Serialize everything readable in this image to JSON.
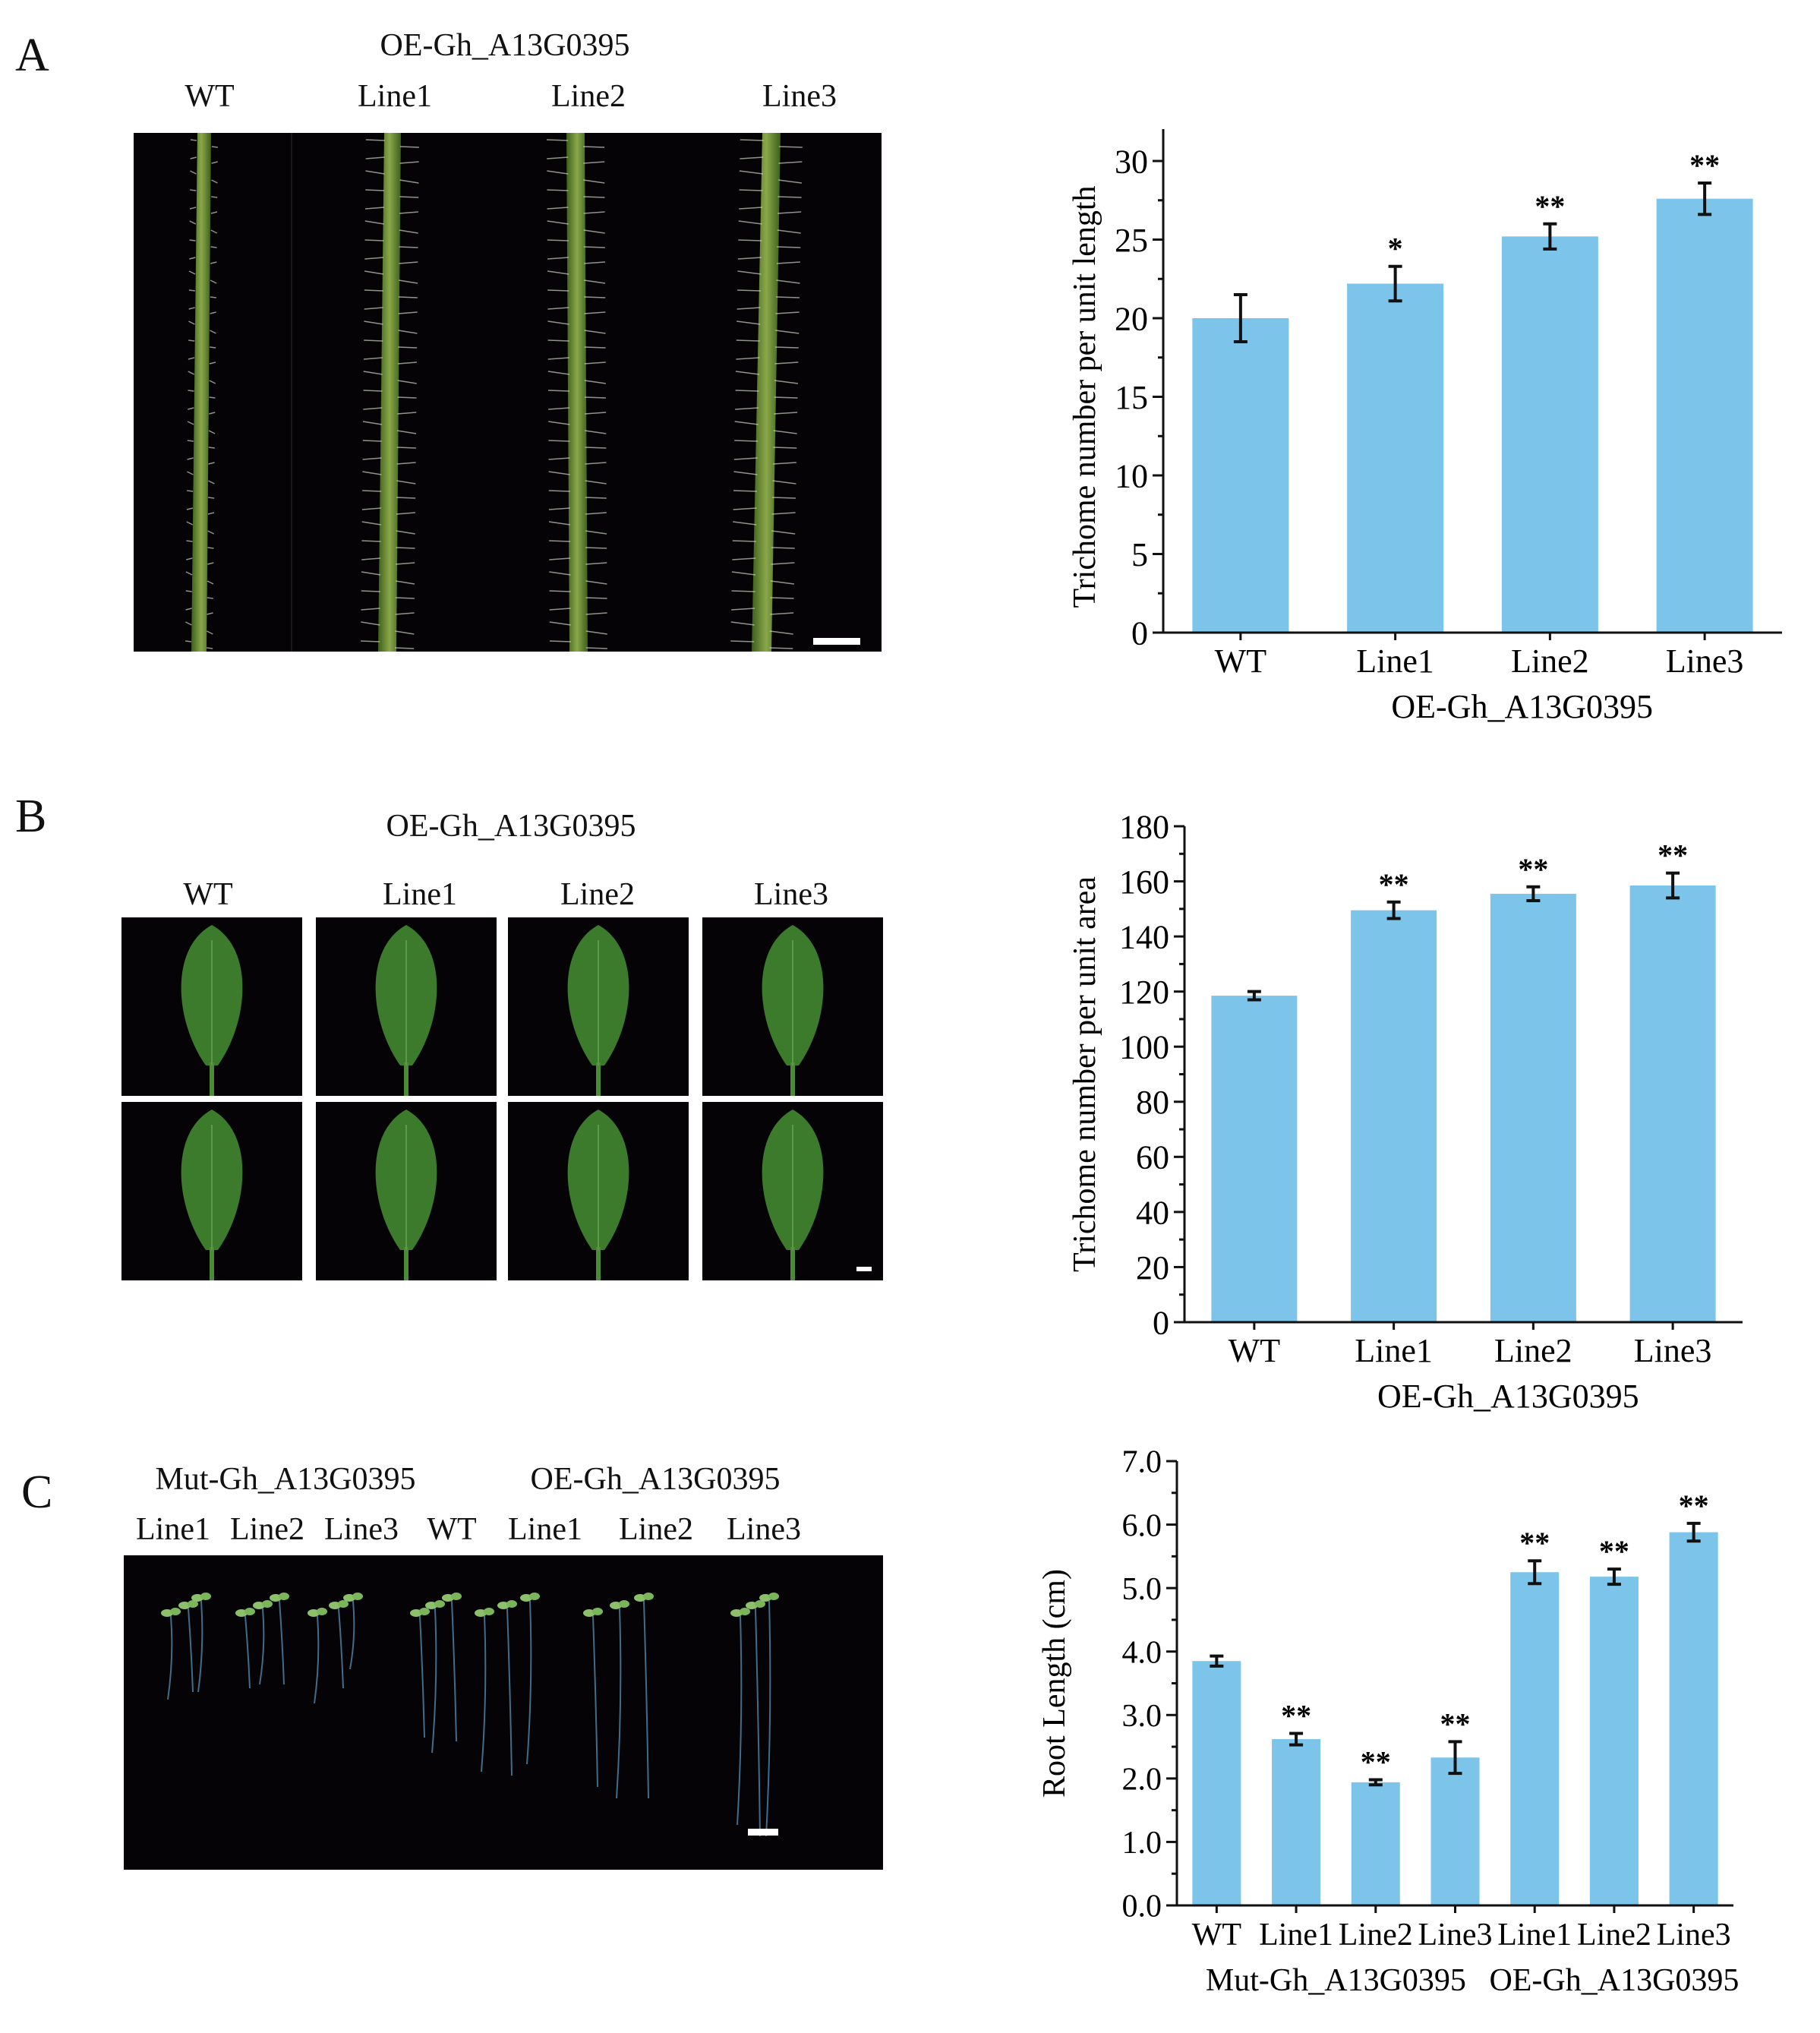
{
  "panels": {
    "A": {
      "letter": "A",
      "photo": {
        "group_label": "OE-Gh_A13G0395",
        "labels": [
          "WT",
          "Line1",
          "Line2",
          "Line3"
        ]
      },
      "chart_data": {
        "type": "bar",
        "categories": [
          "WT",
          "Line1",
          "Line2",
          "Line3"
        ],
        "values": [
          20.0,
          22.2,
          25.2,
          27.6
        ],
        "errors": [
          1.5,
          1.1,
          0.8,
          1.0
        ],
        "significance": [
          "",
          "*",
          "**",
          "**"
        ],
        "ylabel": "Trichome number per unit length",
        "xlabel": "OE-Gh_A13G0395",
        "ylim": [
          0,
          30
        ],
        "yticks": [
          0,
          5,
          10,
          15,
          20,
          25,
          30
        ],
        "grid": false,
        "bar_color": "#7DC4EA"
      }
    },
    "B": {
      "letter": "B",
      "photo": {
        "group_label": "OE-Gh_A13G0395",
        "labels": [
          "WT",
          "Line1",
          "Line2",
          "Line3"
        ]
      },
      "chart_data": {
        "type": "bar",
        "categories": [
          "WT",
          "Line1",
          "Line2",
          "Line3"
        ],
        "values": [
          118.5,
          149.5,
          155.5,
          158.5
        ],
        "errors": [
          1.5,
          3.0,
          2.5,
          4.5
        ],
        "significance": [
          "",
          "**",
          "**",
          "**"
        ],
        "ylabel": "Trichome number per unit area",
        "xlabel": "OE-Gh_A13G0395",
        "ylim": [
          0,
          180
        ],
        "yticks": [
          0,
          20,
          40,
          60,
          80,
          100,
          120,
          140,
          160,
          180
        ],
        "grid": false,
        "bar_color": "#7DC4EA"
      }
    },
    "C": {
      "letter": "C",
      "photo": {
        "group_labels": [
          "Mut-Gh_A13G0395",
          "OE-Gh_A13G0395"
        ],
        "labels": [
          "Line1",
          "Line2",
          "Line3",
          "WT",
          "Line1",
          "Line2",
          "Line3"
        ]
      },
      "chart_data": {
        "type": "bar",
        "categories": [
          "WT",
          "Line1",
          "Line2",
          "Line3",
          "Line1",
          "Line2",
          "Line3"
        ],
        "values": [
          3.85,
          2.62,
          1.94,
          2.33,
          5.25,
          5.18,
          5.88
        ],
        "errors": [
          0.08,
          0.09,
          0.04,
          0.25,
          0.18,
          0.12,
          0.14
        ],
        "significance": [
          "",
          "**",
          "**",
          "**",
          "**",
          "**",
          "**"
        ],
        "ylabel": "Root Length (cm)",
        "xlabel_groups": [
          "Mut-Gh_A13G0395",
          "OE-Gh_A13G0395"
        ],
        "ylim": [
          0,
          7
        ],
        "yticks": [
          "0.0",
          "1.0",
          "2.0",
          "3.0",
          "4.0",
          "5.0",
          "6.0",
          "7.0"
        ],
        "grid": false,
        "bar_color": "#7DC4EA"
      }
    }
  }
}
